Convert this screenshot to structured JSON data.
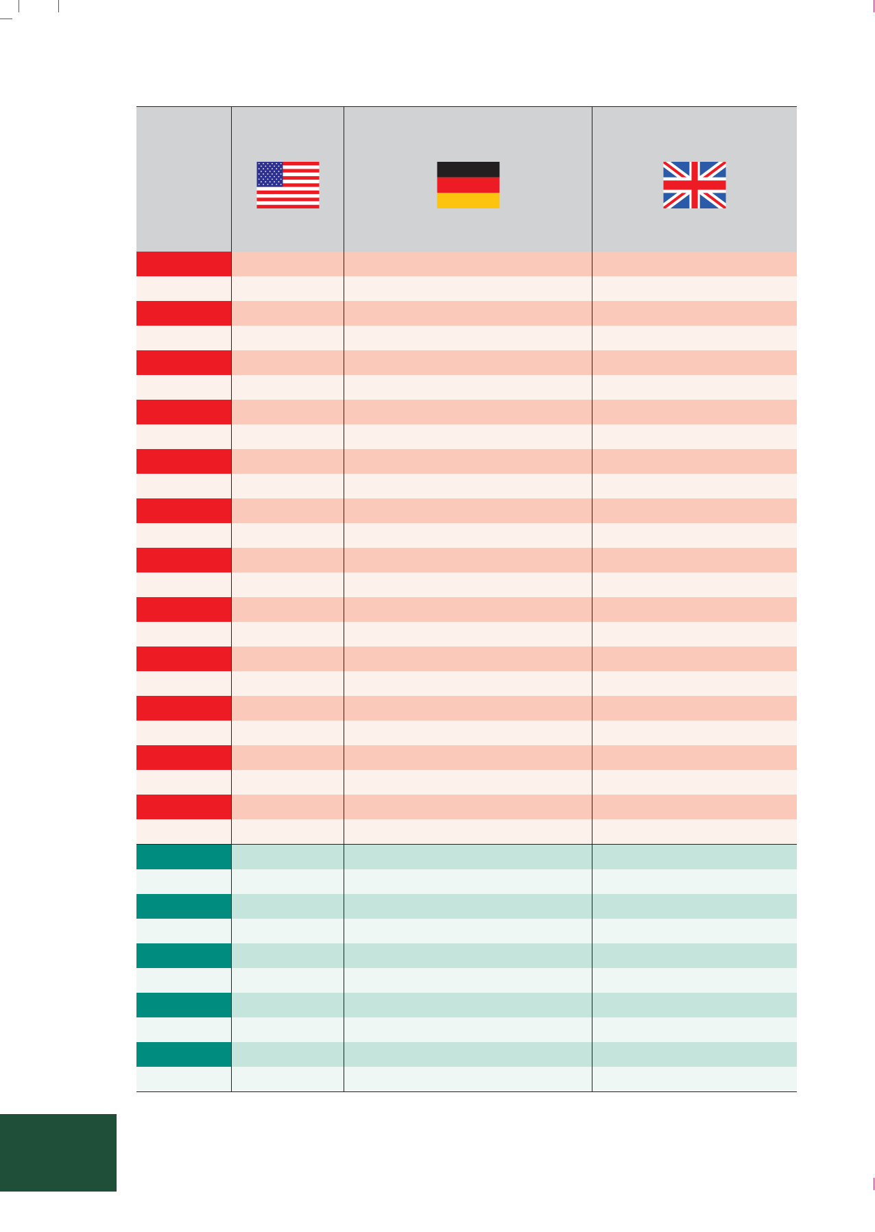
{
  "flags": {
    "col1_icon": "usa-flag-icon",
    "col2_icon": "germany-flag-icon",
    "col3_icon": "uk-flag-icon"
  },
  "colors": {
    "header_bg": "#d1d2d3",
    "red_group_label": "#ed1c24",
    "red_group_dark_row": "#fbc9b9",
    "red_group_light_row": "#fdf1ec",
    "green_group_label": "#008c7e",
    "green_group_dark_row": "#c5e5dc",
    "green_group_light_row": "#eff7f4",
    "corner_block": "#1f4f39",
    "crop_marks": "#d4145a"
  },
  "table": {
    "groups": [
      {
        "name": "red",
        "row_pairs": 12
      },
      {
        "name": "green",
        "row_pairs": 5
      }
    ]
  }
}
